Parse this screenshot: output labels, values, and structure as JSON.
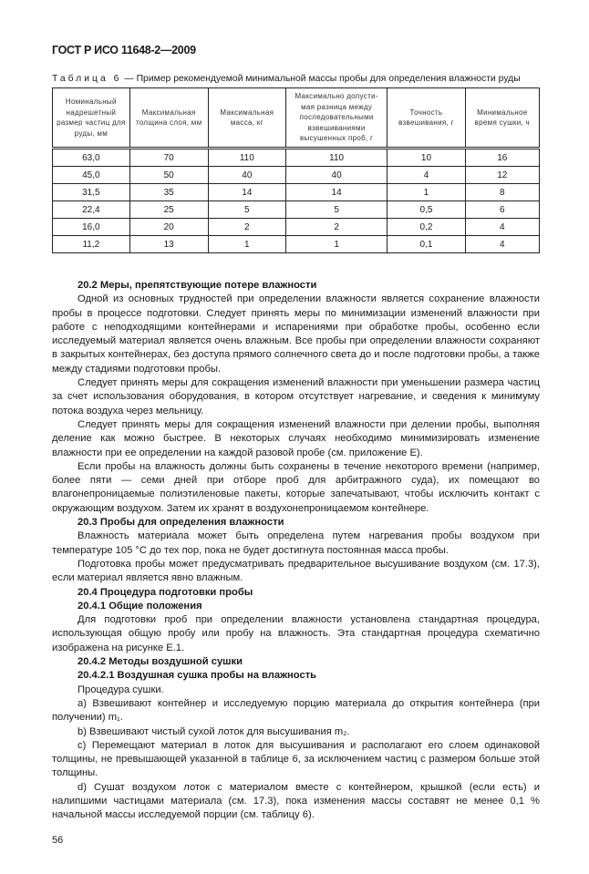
{
  "header": "ГОСТ Р ИСО 11648-2—2009",
  "table": {
    "caption_label": "Таблица 6",
    "caption_text": " — Пример рекомендуемой минимальной массы пробы для определения влажности руды",
    "columns": [
      "Номинальный надрешетный размер частиц для руды, мм",
      "Максимальная толщина слоя, мм",
      "Максимальная масса, кг",
      "Максимально допусти-мая разница между последовательными взвешиваниями высушенных проб, г",
      "Точность взвешивания, г",
      "Минимальное время сушки, ч"
    ],
    "rows": [
      [
        "63,0",
        "70",
        "110",
        "110",
        "10",
        "16"
      ],
      [
        "45,0",
        "50",
        "40",
        "40",
        "4",
        "12"
      ],
      [
        "31,5",
        "35",
        "14",
        "14",
        "1",
        "8"
      ],
      [
        "22,4",
        "25",
        "5",
        "5",
        "0,5",
        "6"
      ],
      [
        "16,0",
        "20",
        "2",
        "2",
        "0,2",
        "4"
      ],
      [
        "11,2",
        "13",
        "1",
        "1",
        "0,1",
        "4"
      ]
    ]
  },
  "body": [
    {
      "type": "h",
      "text": "20.2 Меры, препятствующие потере влажности"
    },
    {
      "type": "p",
      "text": "Одной из основных трудностей при определении влажности является сохранение влажности пробы в процессе подготовки. Следует принять меры по минимизации изменений влажности при работе с неподходящими контейнерами и испарениями при обработке пробы, особенно если исследуемый материал является очень влажным. Все пробы при определении влажности сохраняют в закрытых контейнерах, без доступа прямого солнечного света до и после подготовки пробы, а также между стадиями подготовки пробы."
    },
    {
      "type": "p",
      "text": "Следует принять меры для сокращения изменений влажности при уменьшении размера частиц за счет использования оборудования, в котором отсутствует нагревание, и сведения к минимуму потока воздуха через мельницу."
    },
    {
      "type": "p",
      "text": "Следует принять меры для сокращения изменений влажности при делении пробы, выполняя деление как можно быстрее. В некоторых случаях необходимо минимизировать изменение влажности при ее определении на каждой разовой пробе (см. приложение Е)."
    },
    {
      "type": "p",
      "text": "Если пробы на влажность должны быть сохранены в течение некоторого времени (например, более пяти — семи дней при отборе проб для арбитражного суда), их помещают во влагонепроницаемые полиэтиленовые пакеты, которые запечатывают, чтобы исключить контакт с окружающим воздухом. Затем их хранят в воздухонепроницаемом контейнере."
    },
    {
      "type": "h",
      "text": "20.3 Пробы для определения влажности"
    },
    {
      "type": "p",
      "text": "Влажность материала может быть определена путем нагревания пробы воздухом при температуре 105 °С до тех пор, пока не будет достигнута постоянная масса пробы."
    },
    {
      "type": "p",
      "text": "Подготовка пробы может предусматривать предварительное высушивание воздухом (см. 17.3), если материал является явно влажным."
    },
    {
      "type": "h",
      "text": "20.4 Процедура подготовки пробы"
    },
    {
      "type": "h",
      "text": "20.4.1 Общие положения"
    },
    {
      "type": "p",
      "text": "Для подготовки проб при определении влажности установлена стандартная процедура, использующая общую пробу или пробу на влажность. Эта стандартная процедура схематично изображена на рисунке Е.1."
    },
    {
      "type": "h",
      "text": "20.4.2 Методы воздушной сушки"
    },
    {
      "type": "h",
      "text": "20.4.2.1 Воздушная сушка пробы на влажность"
    },
    {
      "type": "p",
      "text": "Процедура сушки."
    },
    {
      "type": "p",
      "text": "a) Взвешивают контейнер и исследуемую порцию материала до открытия контейнера (при получении) m₁."
    },
    {
      "type": "p",
      "text": "b) Взвешивают чистый сухой лоток для высушивания m₂."
    },
    {
      "type": "p",
      "text": "c) Перемещают материал в лоток для высушивания и располагают его слоем одинаковой толщины, не превышающей указанной в таблице 6, за исключением частиц с размером больше этой толщины."
    },
    {
      "type": "p",
      "text": "d) Сушат воздухом лоток с материалом вместе с контейнером, крышкой (если есть) и налипшими частицами материала (см. 17.3), пока изменения массы составят не менее 0,1 % начальной массы исследуемой порции (см. таблицу 6)."
    }
  ],
  "page_number": "56"
}
